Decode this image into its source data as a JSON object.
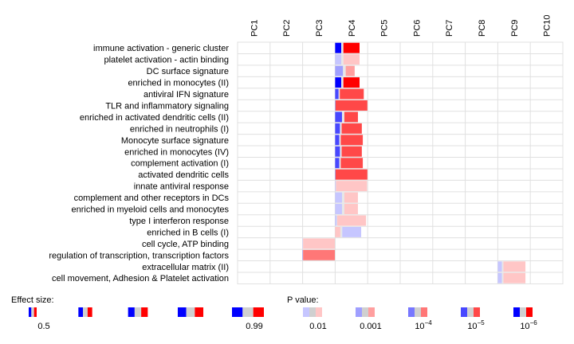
{
  "chart_data": {
    "type": "heatmap",
    "columns": [
      "PC1",
      "PC2",
      "PC3",
      "PC4",
      "PC5",
      "PC6",
      "PC7",
      "PC8",
      "PC9",
      "PC10"
    ],
    "rows": [
      {
        "label": "immune activation - generic cluster",
        "col": "PC4",
        "effect": 0.75,
        "pvalue": "1e-6",
        "direction": "up"
      },
      {
        "label": "platelet activation - actin binding",
        "col": "PC4",
        "effect": 0.75,
        "pvalue": "0.01",
        "direction": "up"
      },
      {
        "label": "DC surface signature",
        "col": "PC4",
        "effect": 0.6,
        "pvalue": "0.001",
        "direction": "up"
      },
      {
        "label": "enriched in monocytes (II)",
        "col": "PC4",
        "effect": 0.75,
        "pvalue": "1e-6",
        "direction": "up"
      },
      {
        "label": "antiviral IFN signature",
        "col": "PC4",
        "effect": 0.88,
        "pvalue": "1e-5",
        "direction": "up"
      },
      {
        "label": "TLR and inflammatory signaling",
        "col": "PC4",
        "effect": 0.99,
        "pvalue": "1e-5",
        "direction": "up"
      },
      {
        "label": "enriched in activated dendritic cells (II)",
        "col": "PC4",
        "effect": 0.7,
        "pvalue": "1e-5",
        "direction": "up"
      },
      {
        "label": "enriched in neutrophils (I)",
        "col": "PC4",
        "effect": 0.82,
        "pvalue": "1e-5",
        "direction": "up"
      },
      {
        "label": "Monocyte surface signature",
        "col": "PC4",
        "effect": 0.85,
        "pvalue": "1e-5",
        "direction": "up"
      },
      {
        "label": "enriched in monocytes (IV)",
        "col": "PC4",
        "effect": 0.82,
        "pvalue": "1e-5",
        "direction": "up"
      },
      {
        "label": "complement activation (I)",
        "col": "PC4",
        "effect": 0.85,
        "pvalue": "1e-5",
        "direction": "up"
      },
      {
        "label": "activated dendritic cells",
        "col": "PC4",
        "effect": 0.99,
        "pvalue": "1e-5",
        "direction": "up"
      },
      {
        "label": "innate antiviral response",
        "col": "PC4",
        "effect": 0.98,
        "pvalue": "0.01",
        "direction": "up"
      },
      {
        "label": "complement and other receptors in DCs",
        "col": "PC4",
        "effect": 0.7,
        "pvalue": "0.01",
        "direction": "up"
      },
      {
        "label": "enriched in myeloid cells and monocytes",
        "col": "PC4",
        "effect": 0.7,
        "pvalue": "0.01",
        "direction": "up"
      },
      {
        "label": "type I interferon response",
        "col": "PC4",
        "effect": 0.95,
        "pvalue": "0.01",
        "direction": "up"
      },
      {
        "label": "enriched in B cells (I)",
        "col": "PC4",
        "effect": 0.8,
        "pvalue": "0.01",
        "direction": "down"
      },
      {
        "label": "cell cycle, ATP binding",
        "col": "PC3",
        "effect": 0.99,
        "pvalue": "0.01",
        "direction": "up"
      },
      {
        "label": "regulation of transcription, transcription factors",
        "col": "PC3",
        "effect": 0.99,
        "pvalue": "1e-4",
        "direction": "up"
      },
      {
        "label": "extracellular matrix (II)",
        "col": "PC9",
        "effect": 0.85,
        "pvalue": "0.01",
        "direction": "up"
      },
      {
        "label": "cell movement, Adhesion & Platelet activation",
        "col": "PC9",
        "effect": 0.85,
        "pvalue": "0.01",
        "direction": "up"
      }
    ],
    "legend": {
      "effect_title": "Effect size:",
      "effect_keys": [
        {
          "value": 0.5,
          "label": "0.5"
        },
        {
          "value": 0.62,
          "label": ""
        },
        {
          "value": 0.74,
          "label": ""
        },
        {
          "value": 0.86,
          "label": ""
        },
        {
          "value": 0.99,
          "label": "0.99"
        }
      ],
      "pvalue_title": "P value:",
      "pvalue_keys": [
        {
          "level": 1,
          "base": "0.01",
          "exp": ""
        },
        {
          "level": 2,
          "base": "0.001",
          "exp": ""
        },
        {
          "level": 3,
          "base": "10",
          "exp": "−4"
        },
        {
          "level": 4,
          "base": "10",
          "exp": "−5"
        },
        {
          "level": 5,
          "base": "10",
          "exp": "−6"
        }
      ]
    },
    "colors": {
      "up_levels": [
        "#ffc6c6",
        "#ff9f9f",
        "#ff7777",
        "#ff4848",
        "#ff0000"
      ],
      "down_levels": [
        "#c6c6ff",
        "#9f9fff",
        "#7777ff",
        "#4848ff",
        "#0000ff"
      ],
      "neutral": "#d0d0d0",
      "grid": "#e0e0e0"
    }
  }
}
